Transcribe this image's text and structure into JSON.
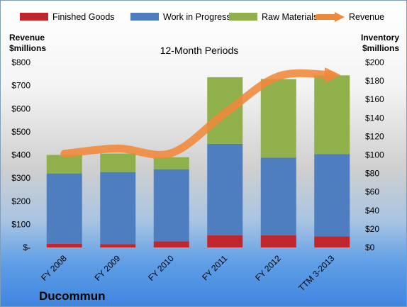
{
  "chart_data": {
    "type": "bar",
    "subtitle": "12-Month Periods",
    "company": "Ducommun",
    "categories": [
      "FY 2008",
      "FY 2009",
      "FY 2010",
      "FY 2011",
      "FY 2012",
      "TTM 3-2013"
    ],
    "left_axis": {
      "title_line1": "Revenue",
      "title_line2": "$millions",
      "ylim": [
        0,
        800
      ],
      "ticks": [
        "$-",
        "$100",
        "$200",
        "$300",
        "$400",
        "$500",
        "$600",
        "$700",
        "$800"
      ]
    },
    "right_axis": {
      "title_line1": "Inventory",
      "title_line2": "$millions",
      "ylim": [
        0,
        200
      ],
      "ticks": [
        "$0",
        "$20",
        "$40",
        "$60",
        "$80",
        "$100",
        "$120",
        "$140",
        "$160",
        "$180",
        "$200"
      ]
    },
    "series": [
      {
        "name": "Finished Goods",
        "kind": "stacked-bar",
        "axis": "right",
        "color": "#c0272d",
        "values": [
          4,
          3.5,
          6.5,
          13,
          13,
          12
        ]
      },
      {
        "name": "Work in Progress",
        "kind": "stacked-bar",
        "axis": "right",
        "color": "#4f7ec0",
        "values": [
          76,
          78,
          78,
          99,
          84,
          89
        ]
      },
      {
        "name": "Raw Materials",
        "kind": "stacked-bar",
        "axis": "right",
        "color": "#8fb04a",
        "values": [
          20,
          20,
          13,
          72,
          85,
          85
        ]
      },
      {
        "name": "Revenue",
        "kind": "line",
        "axis": "left",
        "color": "#f0883a",
        "values": [
          405,
          428,
          408,
          580,
          740,
          745
        ]
      }
    ],
    "legend_position": "top",
    "grid": false
  }
}
